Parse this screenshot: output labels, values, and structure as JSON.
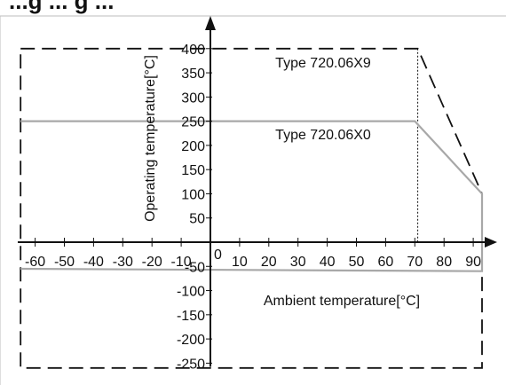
{
  "chart_data": {
    "type": "line",
    "title_fragment": "...g ... g ...",
    "ylabel": "Operating temperature[°C]",
    "xlabel": "Ambient temperature[°C]",
    "xlim": [
      -65,
      94
    ],
    "ylim": [
      -250,
      400
    ],
    "x_ticks": [
      -60,
      -50,
      -40,
      -30,
      -20,
      -10,
      0,
      10,
      20,
      30,
      40,
      50,
      60,
      70,
      80,
      90
    ],
    "y_ticks": [
      400,
      350,
      300,
      250,
      200,
      150,
      100,
      50,
      -50,
      -100,
      -150,
      -200,
      -250
    ],
    "grid": false,
    "series": [
      {
        "name": "Type 720.06X9",
        "style": "dashed",
        "color": "#111111",
        "points": [
          [
            -65,
            400
          ],
          [
            71,
            400
          ],
          [
            93,
            100
          ],
          [
            93,
            -260
          ],
          [
            -65,
            -260
          ],
          [
            -65,
            400
          ]
        ]
      },
      {
        "name": "Type 720.06X0",
        "style": "solid",
        "color": "#a8a8a8",
        "points": [
          [
            -65,
            250
          ],
          [
            70,
            250
          ],
          [
            93,
            100
          ],
          [
            93,
            -60
          ],
          [
            -65,
            -55
          ]
        ]
      }
    ],
    "annotations": [
      {
        "text": "Type 720.06X9",
        "x": 80.5,
        "y": 350
      },
      {
        "text": "Type 720.06X0",
        "x": 80.5,
        "y": 215
      },
      {
        "text": "Ambient temperature[°C]",
        "x": 80.5,
        "y": -120
      }
    ]
  }
}
